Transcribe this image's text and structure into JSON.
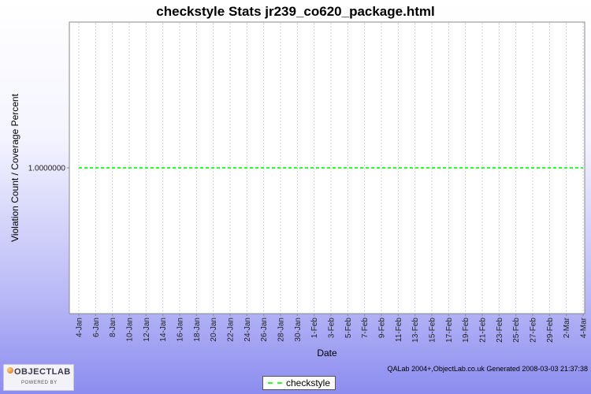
{
  "chart_data": {
    "type": "line",
    "title": "checkstyle  Stats jr239_co620_package.html",
    "xlabel": "Date",
    "ylabel": "Violation Count / Coverage Percent",
    "x_tick_labels": [
      "4-Jan",
      "6-Jan",
      "8-Jan",
      "10-Jan",
      "12-Jan",
      "14-Jan",
      "16-Jan",
      "18-Jan",
      "20-Jan",
      "22-Jan",
      "24-Jan",
      "26-Jan",
      "28-Jan",
      "30-Jan",
      "1-Feb",
      "3-Feb",
      "5-Feb",
      "7-Feb",
      "9-Feb",
      "11-Feb",
      "13-Feb",
      "15-Feb",
      "17-Feb",
      "19-Feb",
      "21-Feb",
      "23-Feb",
      "25-Feb",
      "27-Feb",
      "29-Feb",
      "2-Mar",
      "4-Mar"
    ],
    "y_tick_labels": [
      "1.0000000"
    ],
    "ylim": [
      0,
      2
    ],
    "grid": true,
    "legend_position": "bottom",
    "series": [
      {
        "name": "checkstyle",
        "color": "#2cff2c",
        "line_style": "dashed",
        "x": [
          "4-Jan",
          "4-Mar"
        ],
        "values": [
          1,
          1
        ]
      }
    ]
  },
  "footer": {
    "credit": "QALab 2004+,ObjectLab.co.uk  Generated 2008-03-03 21:37:38"
  },
  "logo": {
    "text": "OBJECTLAB",
    "powered": "POWERED BY"
  }
}
